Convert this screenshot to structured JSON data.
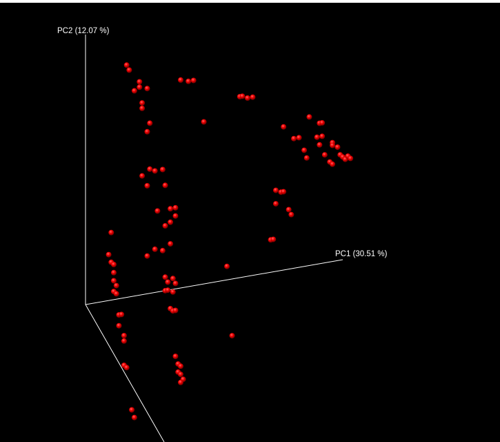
{
  "chart_data": {
    "type": "scatter",
    "projection": "3d",
    "axes": [
      {
        "id": "pc1",
        "label": "PC1 (30.51 %)"
      },
      {
        "id": "pc2",
        "label": "PC2 (12.07 %)"
      },
      {
        "id": "pc3",
        "label": ""
      }
    ],
    "background": "#000000",
    "axis_color": "#ffffff",
    "point_color": "#e00000",
    "grid": false,
    "legend": "none",
    "point_encoding": "screen-projected PC1/PC2 scores, relative units (PC1 axis origin = 0, PC2 axis top = 1)",
    "points": [
      [
        0.16,
        0.86
      ],
      [
        0.17,
        0.84
      ],
      [
        0.19,
        0.76
      ],
      [
        0.21,
        0.79
      ],
      [
        0.21,
        0.77
      ],
      [
        0.24,
        0.76
      ],
      [
        0.22,
        0.71
      ],
      [
        0.22,
        0.69
      ],
      [
        0.25,
        0.63
      ],
      [
        0.24,
        0.6
      ],
      [
        0.37,
        0.77
      ],
      [
        0.4,
        0.76
      ],
      [
        0.42,
        0.76
      ],
      [
        0.46,
        0.6
      ],
      [
        0.6,
        0.67
      ],
      [
        0.61,
        0.67
      ],
      [
        0.63,
        0.66
      ],
      [
        0.65,
        0.66
      ],
      [
        0.77,
        0.53
      ],
      [
        0.81,
        0.48
      ],
      [
        0.83,
        0.48
      ],
      [
        0.85,
        0.43
      ],
      [
        0.86,
        0.4
      ],
      [
        0.87,
        0.55
      ],
      [
        0.91,
        0.52
      ],
      [
        0.92,
        0.52
      ],
      [
        0.9,
        0.47
      ],
      [
        0.92,
        0.47
      ],
      [
        0.91,
        0.44
      ],
      [
        0.93,
        0.4
      ],
      [
        0.96,
        0.44
      ],
      [
        0.96,
        0.43
      ],
      [
        0.95,
        0.37
      ],
      [
        0.96,
        0.36
      ],
      [
        0.98,
        0.42
      ],
      [
        0.99,
        0.39
      ],
      [
        1.0,
        0.38
      ],
      [
        1.01,
        0.37
      ],
      [
        1.02,
        0.38
      ],
      [
        1.03,
        0.37
      ],
      [
        0.76,
        0.29
      ],
      [
        0.74,
        0.3
      ],
      [
        0.77,
        0.29
      ],
      [
        0.74,
        0.25
      ],
      [
        0.79,
        0.22
      ],
      [
        0.8,
        0.2
      ],
      [
        0.72,
        0.12
      ],
      [
        0.73,
        0.12
      ],
      [
        0.55,
        0.05
      ],
      [
        0.25,
        0.46
      ],
      [
        0.22,
        0.44
      ],
      [
        0.27,
        0.45
      ],
      [
        0.3,
        0.45
      ],
      [
        0.24,
        0.4
      ],
      [
        0.31,
        0.39
      ],
      [
        0.28,
        0.3
      ],
      [
        0.33,
        0.3
      ],
      [
        0.35,
        0.3
      ],
      [
        0.35,
        0.27
      ],
      [
        0.31,
        0.24
      ],
      [
        0.33,
        0.25
      ],
      [
        0.27,
        0.16
      ],
      [
        0.3,
        0.15
      ],
      [
        0.24,
        0.14
      ],
      [
        0.33,
        0.17
      ],
      [
        0.1,
        0.25
      ],
      [
        0.09,
        0.17
      ],
      [
        0.1,
        0.14
      ],
      [
        0.11,
        0.13
      ],
      [
        0.11,
        0.1
      ],
      [
        0.11,
        0.07
      ],
      [
        0.12,
        0.05
      ],
      [
        0.11,
        0.03
      ],
      [
        0.12,
        0.02
      ],
      [
        0.13,
        -0.06
      ],
      [
        0.14,
        -0.06
      ],
      [
        0.13,
        -0.1
      ],
      [
        0.15,
        -0.14
      ],
      [
        0.15,
        -0.16
      ],
      [
        0.31,
        0.05
      ],
      [
        0.32,
        0.03
      ],
      [
        0.31,
        0.0
      ],
      [
        0.32,
        0.0
      ],
      [
        0.34,
        0.04
      ],
      [
        0.35,
        0.02
      ],
      [
        0.34,
        -0.01
      ],
      [
        0.33,
        -0.07
      ],
      [
        0.34,
        -0.08
      ],
      [
        0.35,
        -0.08
      ],
      [
        0.15,
        -0.25
      ],
      [
        0.16,
        -0.26
      ],
      [
        0.18,
        -0.42
      ],
      [
        0.19,
        -0.45
      ],
      [
        0.35,
        -0.25
      ],
      [
        0.36,
        -0.28
      ],
      [
        0.37,
        -0.29
      ],
      [
        0.36,
        -0.31
      ],
      [
        0.37,
        -0.32
      ],
      [
        0.38,
        -0.34
      ],
      [
        0.37,
        -0.35
      ],
      [
        0.57,
        -0.21
      ]
    ]
  }
}
